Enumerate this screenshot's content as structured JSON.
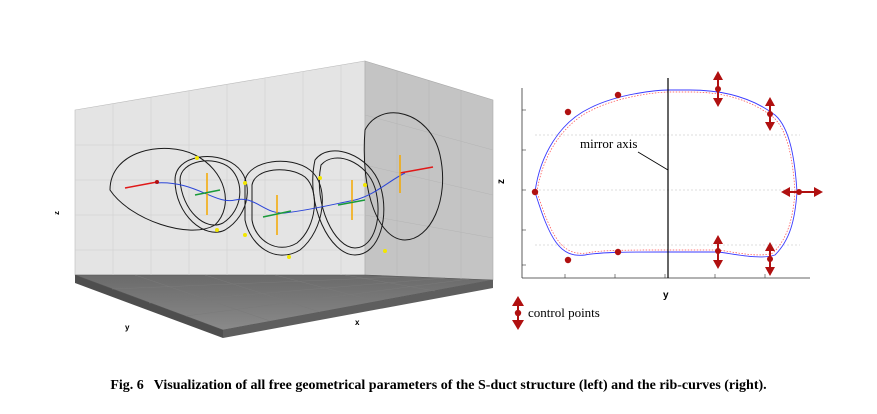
{
  "left_figure": {
    "axis_labels": {
      "z": "z",
      "y": "y",
      "x": "x"
    }
  },
  "right_figure": {
    "axis_labels": {
      "z": "z",
      "y": "y"
    },
    "mirror_label": "mirror axis"
  },
  "legend": {
    "label": "control points"
  },
  "caption": {
    "number": "Fig. 6",
    "text": "Visualization of all free geometrical parameters of the S-duct structure (left) and the rib-curves (right)."
  },
  "colors": {
    "control_point": "#b01010",
    "centerline": "#2b45d8",
    "inlet_vector": "#e01818",
    "orange_vector": "#f5a800",
    "green_vector": "#1a9a3a",
    "yellow_marker": "#f2e600",
    "outer_contour": "#0000ff",
    "inner_contour": "#ff4a4a"
  }
}
